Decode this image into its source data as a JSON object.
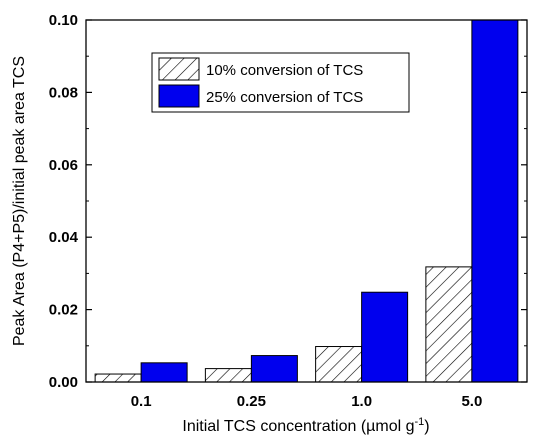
{
  "chart_data": {
    "type": "bar",
    "categories": [
      "0.1",
      "0.25",
      "1.0",
      "5.0"
    ],
    "series": [
      {
        "name": "10% conversion of TCS",
        "values": [
          0.0022,
          0.0037,
          0.0098,
          0.0318
        ],
        "color": "#ffffff",
        "pattern": "diagonal-hatch"
      },
      {
        "name": "25% conversion of TCS",
        "values": [
          0.0053,
          0.0073,
          0.0248,
          0.1
        ],
        "color": "#0000ee",
        "pattern": "solid"
      }
    ],
    "xlabel": "Initial TCS concentration (µmol g",
    "xlabel_sup": "-1",
    "xlabel_end": ")",
    "ylabel": "Peak Area (P4+P5)/initial peak area TCS",
    "ylim": [
      0,
      0.1
    ],
    "yticks": [
      "0.00",
      "0.02",
      "0.04",
      "0.06",
      "0.08",
      "0.10"
    ],
    "legend_position": "top-center",
    "grid": false
  }
}
